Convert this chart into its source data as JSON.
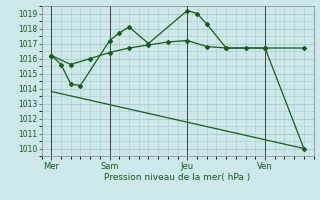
{
  "background_color": "#cce8e8",
  "grid_color": "#aacccc",
  "line_color": "#1a5c1a",
  "title": "Pression niveau de la mer( hPa )",
  "ylim": [
    1009.5,
    1019.5
  ],
  "yticks": [
    1010,
    1011,
    1012,
    1013,
    1014,
    1015,
    1016,
    1017,
    1018,
    1019
  ],
  "xlim": [
    0,
    14
  ],
  "day_labels": [
    "Mer",
    "Sam",
    "Jeu",
    "Ven"
  ],
  "day_positions": [
    0.5,
    3.5,
    7.5,
    11.5
  ],
  "vline_positions": [
    0.5,
    3.5,
    7.5,
    11.5
  ],
  "series1_x": [
    0.5,
    1.0,
    1.5,
    2.0,
    3.5,
    4.0,
    4.5,
    5.5,
    7.5,
    8.0,
    8.5,
    9.5,
    11.5,
    13.5
  ],
  "series1_y": [
    1016.2,
    1015.6,
    1014.3,
    1014.2,
    1017.2,
    1017.7,
    1018.1,
    1017.0,
    1019.2,
    1019.0,
    1018.3,
    1016.7,
    1016.7,
    1010.0
  ],
  "series2_x": [
    0.5,
    1.5,
    2.5,
    3.5,
    4.5,
    5.5,
    6.5,
    7.5,
    8.5,
    9.5,
    10.5,
    11.5,
    13.5
  ],
  "series2_y": [
    1016.2,
    1015.6,
    1016.0,
    1016.4,
    1016.7,
    1016.9,
    1017.1,
    1017.2,
    1016.8,
    1016.7,
    1016.7,
    1016.7,
    1016.7
  ],
  "series3_x": [
    0.5,
    13.5
  ],
  "series3_y": [
    1013.8,
    1010.0
  ]
}
